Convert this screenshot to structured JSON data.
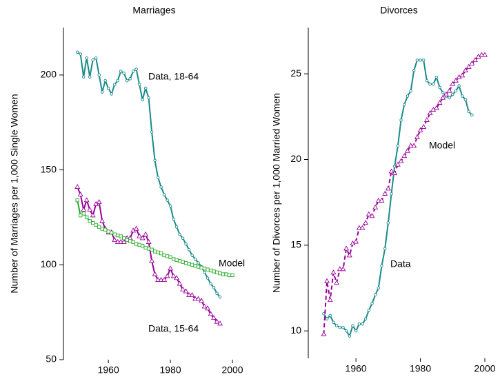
{
  "chart_data": [
    {
      "type": "line",
      "title": "Marriages",
      "ylabel": "Number of Marriages per 1,000 Single Women",
      "xlim": [
        1945.5,
        2004
      ],
      "xticks": [
        1960,
        1980,
        2000
      ],
      "ylim": [
        50,
        225
      ],
      "yticks": [
        50,
        100,
        150,
        200
      ],
      "annotations": [
        "Data, 18-64",
        "Model",
        "Data, 15-64"
      ],
      "series": [
        {
          "name": "Data, 18-64",
          "color": "#1a8a8a",
          "marker": "circle",
          "dashed": false,
          "x": [
            1950,
            1951,
            1952,
            1953,
            1954,
            1955,
            1956,
            1957,
            1958,
            1959,
            1960,
            1961,
            1962,
            1963,
            1964,
            1965,
            1966,
            1967,
            1968,
            1969,
            1970,
            1971,
            1972,
            1973,
            1974,
            1975,
            1976,
            1977,
            1978,
            1979,
            1980,
            1981,
            1982,
            1983,
            1984,
            1985,
            1986,
            1987,
            1988,
            1989,
            1990,
            1991,
            1992,
            1993,
            1994,
            1995,
            1996
          ],
          "values": [
            212,
            211,
            199,
            209,
            199,
            208,
            209,
            200,
            191,
            197,
            193,
            190,
            195,
            197,
            202,
            201,
            197,
            198,
            202,
            203,
            195,
            187,
            193,
            188,
            170,
            155,
            146,
            141,
            137,
            134,
            131,
            124,
            120,
            116,
            114,
            111,
            108,
            105,
            103,
            101,
            99,
            96,
            93,
            90,
            88,
            85,
            83
          ]
        },
        {
          "name": "Data, 15-64",
          "color": "#990099",
          "marker": "triangle",
          "dashed": false,
          "x": [
            1950,
            1951,
            1952,
            1953,
            1954,
            1955,
            1956,
            1957,
            1958,
            1959,
            1960,
            1961,
            1962,
            1963,
            1964,
            1965,
            1966,
            1967,
            1968,
            1969,
            1970,
            1971,
            1972,
            1973,
            1974,
            1975,
            1976,
            1977,
            1978,
            1979,
            1980,
            1981,
            1982,
            1983,
            1984,
            1985,
            1986,
            1987,
            1988,
            1989,
            1990,
            1991,
            1992,
            1993,
            1994,
            1995,
            1996
          ],
          "values": [
            141,
            137,
            129,
            134,
            129,
            126,
            132,
            133,
            123,
            119,
            117,
            117,
            113,
            112,
            112,
            112,
            114,
            114,
            118,
            119,
            115,
            114,
            116,
            112,
            102,
            95,
            92,
            92,
            92,
            94,
            98,
            94,
            93,
            90,
            87,
            86,
            84,
            84,
            82,
            82,
            81,
            78,
            77,
            74,
            72,
            70,
            69
          ]
        },
        {
          "name": "Model",
          "color": "#22aa22",
          "marker": "square",
          "dashed": false,
          "x": [
            1950,
            1951,
            1952,
            1953,
            1954,
            1955,
            1956,
            1957,
            1958,
            1959,
            1960,
            1961,
            1962,
            1963,
            1964,
            1965,
            1966,
            1967,
            1968,
            1969,
            1970,
            1971,
            1972,
            1973,
            1974,
            1975,
            1976,
            1977,
            1978,
            1979,
            1980,
            1981,
            1982,
            1983,
            1984,
            1985,
            1986,
            1987,
            1988,
            1989,
            1990,
            1991,
            1992,
            1993,
            1994,
            1995,
            1996,
            1997,
            1998,
            1999,
            2000
          ],
          "values": [
            134,
            126,
            127,
            125,
            123,
            122,
            121,
            120,
            119,
            118.5,
            117.5,
            117,
            116,
            115.5,
            115,
            114,
            113,
            112.5,
            112,
            111,
            110.5,
            110,
            109,
            108.5,
            108,
            107,
            106.5,
            106,
            105,
            104.5,
            104,
            103,
            102.5,
            102,
            101.5,
            101,
            100.5,
            100,
            99.5,
            99,
            98.5,
            98,
            97.5,
            97,
            96.5,
            96,
            95.5,
            95,
            95,
            94.5,
            94.5
          ]
        }
      ]
    },
    {
      "type": "line",
      "title": "Divorces",
      "ylabel": "Number of Divorces per 1,000 Married Women",
      "xlim": [
        1945.2,
        2001.5
      ],
      "xticks": [
        1960,
        1980,
        2000
      ],
      "ylim": [
        8.4,
        27.7
      ],
      "yticks": [
        10,
        15,
        20,
        25
      ],
      "annotations": [
        "Model",
        "Data"
      ],
      "series": [
        {
          "name": "Data",
          "color": "#1a8a8a",
          "marker": "circle",
          "dashed": false,
          "x": [
            1950,
            1951,
            1952,
            1953,
            1954,
            1955,
            1956,
            1957,
            1958,
            1959,
            1960,
            1961,
            1962,
            1963,
            1964,
            1965,
            1966,
            1967,
            1968,
            1969,
            1970,
            1971,
            1972,
            1973,
            1974,
            1975,
            1976,
            1977,
            1978,
            1979,
            1980,
            1981,
            1982,
            1983,
            1984,
            1985,
            1986,
            1987,
            1988,
            1989,
            1990,
            1991,
            1992,
            1993,
            1994,
            1995,
            1996
          ],
          "values": [
            11.0,
            10.7,
            10.9,
            10.5,
            10.3,
            10.2,
            10.2,
            10.0,
            9.7,
            10.3,
            10.0,
            10.4,
            10.4,
            10.7,
            11.2,
            11.6,
            12.1,
            12.5,
            13.8,
            14.8,
            16.3,
            18.0,
            19.6,
            20.8,
            22.3,
            23.2,
            23.7,
            24.0,
            25.2,
            25.8,
            25.8,
            25.8,
            24.6,
            24.4,
            24.4,
            24.8,
            24.2,
            23.9,
            23.7,
            23.6,
            23.8,
            24.0,
            24.3,
            23.7,
            23.5,
            22.8,
            22.6
          ]
        },
        {
          "name": "Model",
          "color": "#990099",
          "marker": "triangle",
          "dashed": true,
          "x": [
            1950,
            1951,
            1952,
            1953,
            1954,
            1955,
            1956,
            1957,
            1958,
            1959,
            1960,
            1961,
            1962,
            1963,
            1964,
            1965,
            1966,
            1967,
            1968,
            1969,
            1970,
            1971,
            1972,
            1973,
            1974,
            1975,
            1976,
            1977,
            1978,
            1979,
            1980,
            1981,
            1982,
            1983,
            1984,
            1985,
            1986,
            1987,
            1988,
            1989,
            1990,
            1991,
            1992,
            1993,
            1994,
            1995,
            1996,
            1997,
            1998,
            1999,
            2000
          ],
          "values": [
            9.8,
            12.9,
            11.8,
            13.4,
            12.8,
            13.6,
            13.6,
            14.8,
            14.4,
            15.1,
            15.2,
            16.0,
            16.0,
            16.3,
            16.8,
            16.7,
            17.2,
            17.6,
            17.6,
            18.0,
            18.3,
            19.3,
            19.2,
            19.7,
            19.9,
            20.2,
            20.5,
            20.8,
            20.8,
            21.3,
            21.7,
            21.9,
            22.3,
            22.7,
            22.9,
            23.0,
            23.3,
            23.6,
            23.8,
            24.0,
            24.4,
            24.6,
            24.8,
            24.9,
            25.2,
            25.4,
            25.6,
            25.8,
            26.0,
            26.1,
            26.1
          ]
        }
      ]
    }
  ]
}
